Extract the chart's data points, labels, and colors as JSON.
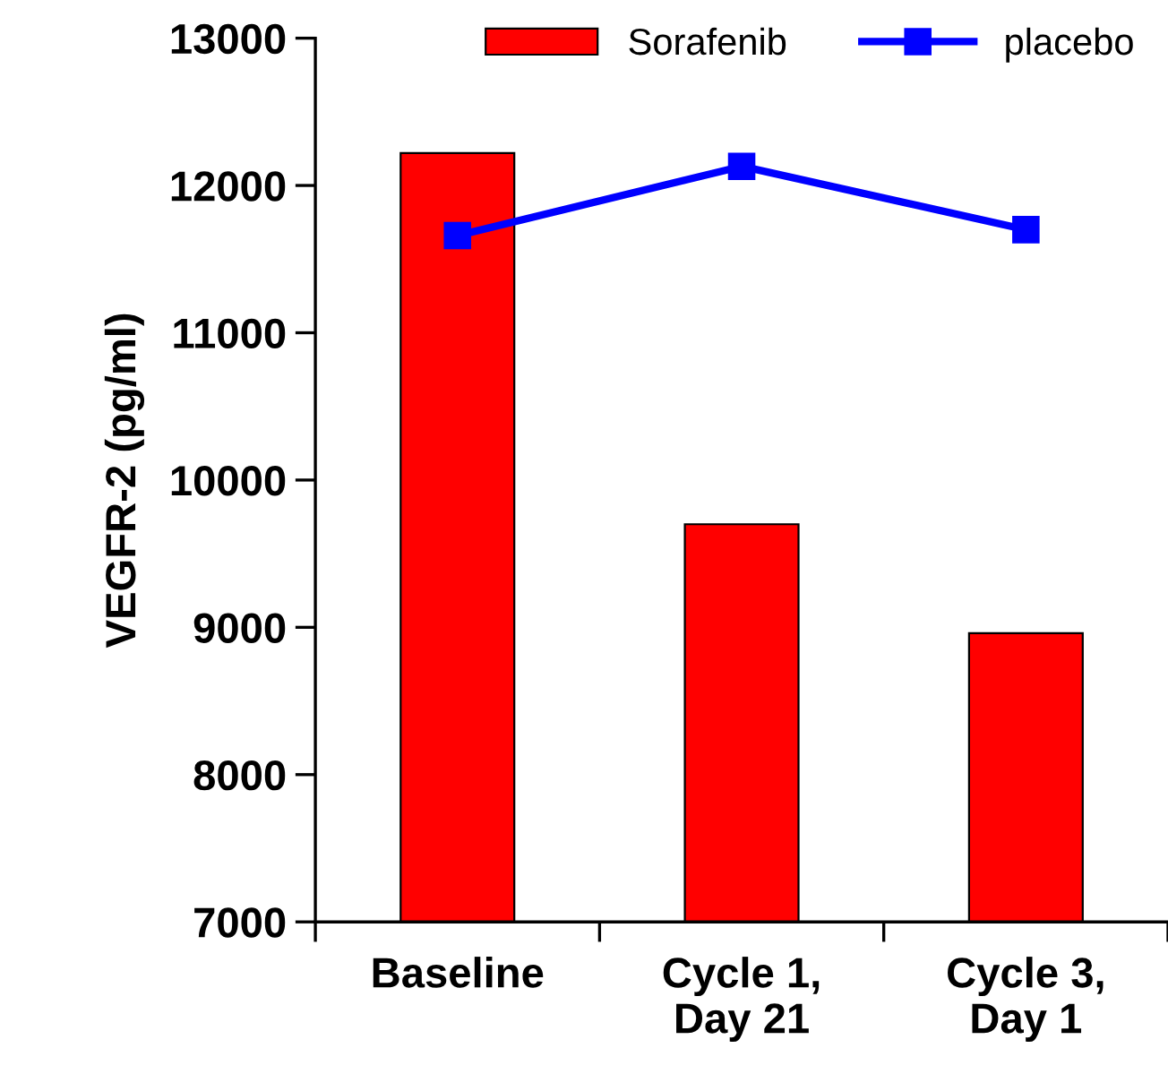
{
  "chart_data": {
    "type": "bar",
    "ylabel": "VEGFR-2 (pg/ml)",
    "categories": [
      "Baseline",
      "Cycle 1,\nDay 21",
      "Cycle 3,\nDay 1"
    ],
    "series": [
      {
        "name": "Sorafenib",
        "color": "#ff0000",
        "values": [
          12220,
          9700,
          8960
        ]
      },
      {
        "name": "placebo",
        "type": "line",
        "color": "#0000ff",
        "values": [
          11660,
          12130,
          11700
        ]
      }
    ],
    "ylim": [
      7000,
      13000
    ],
    "yticks": [
      7000,
      8000,
      9000,
      10000,
      11000,
      12000,
      13000
    ],
    "legend": "top right",
    "marker": "square",
    "line_style": "solid",
    "grid": false
  }
}
